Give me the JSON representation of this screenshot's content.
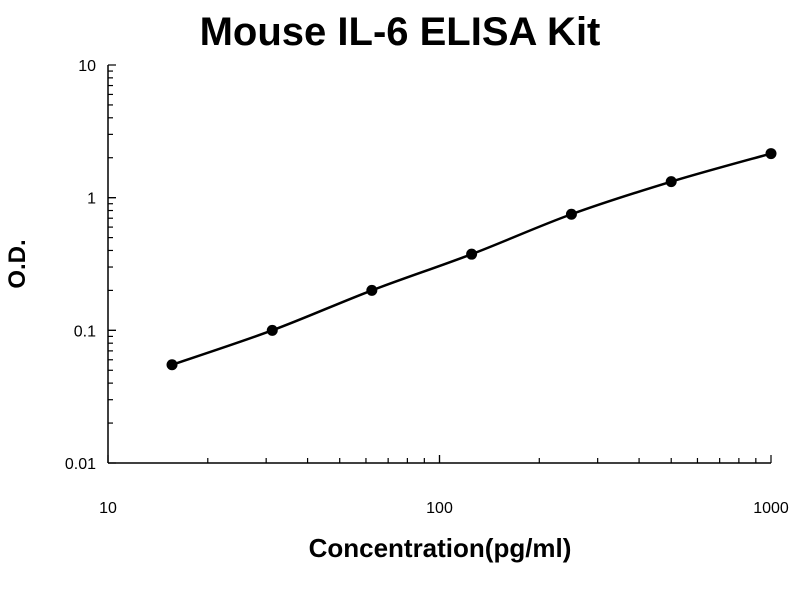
{
  "chart_data": {
    "type": "line",
    "title": "Mouse IL-6 ELISA Kit",
    "xlabel": "Concentration(pg/ml)",
    "ylabel": "O.D.",
    "x_scale": "log",
    "y_scale": "log",
    "xlim": [
      10,
      1000
    ],
    "ylim": [
      0.01,
      10
    ],
    "x_ticks": [
      "10",
      "100",
      "1000"
    ],
    "y_ticks": [
      "0.01",
      "0.1",
      "1",
      "10"
    ],
    "grid": false,
    "legend": "none",
    "series": [
      {
        "x": [
          15.6,
          31.3,
          62.5,
          125,
          250,
          500,
          1000
        ],
        "y": [
          0.055,
          0.1,
          0.2,
          0.375,
          0.75,
          1.32,
          2.15
        ],
        "marker": "circle",
        "color": "#000000"
      }
    ]
  }
}
